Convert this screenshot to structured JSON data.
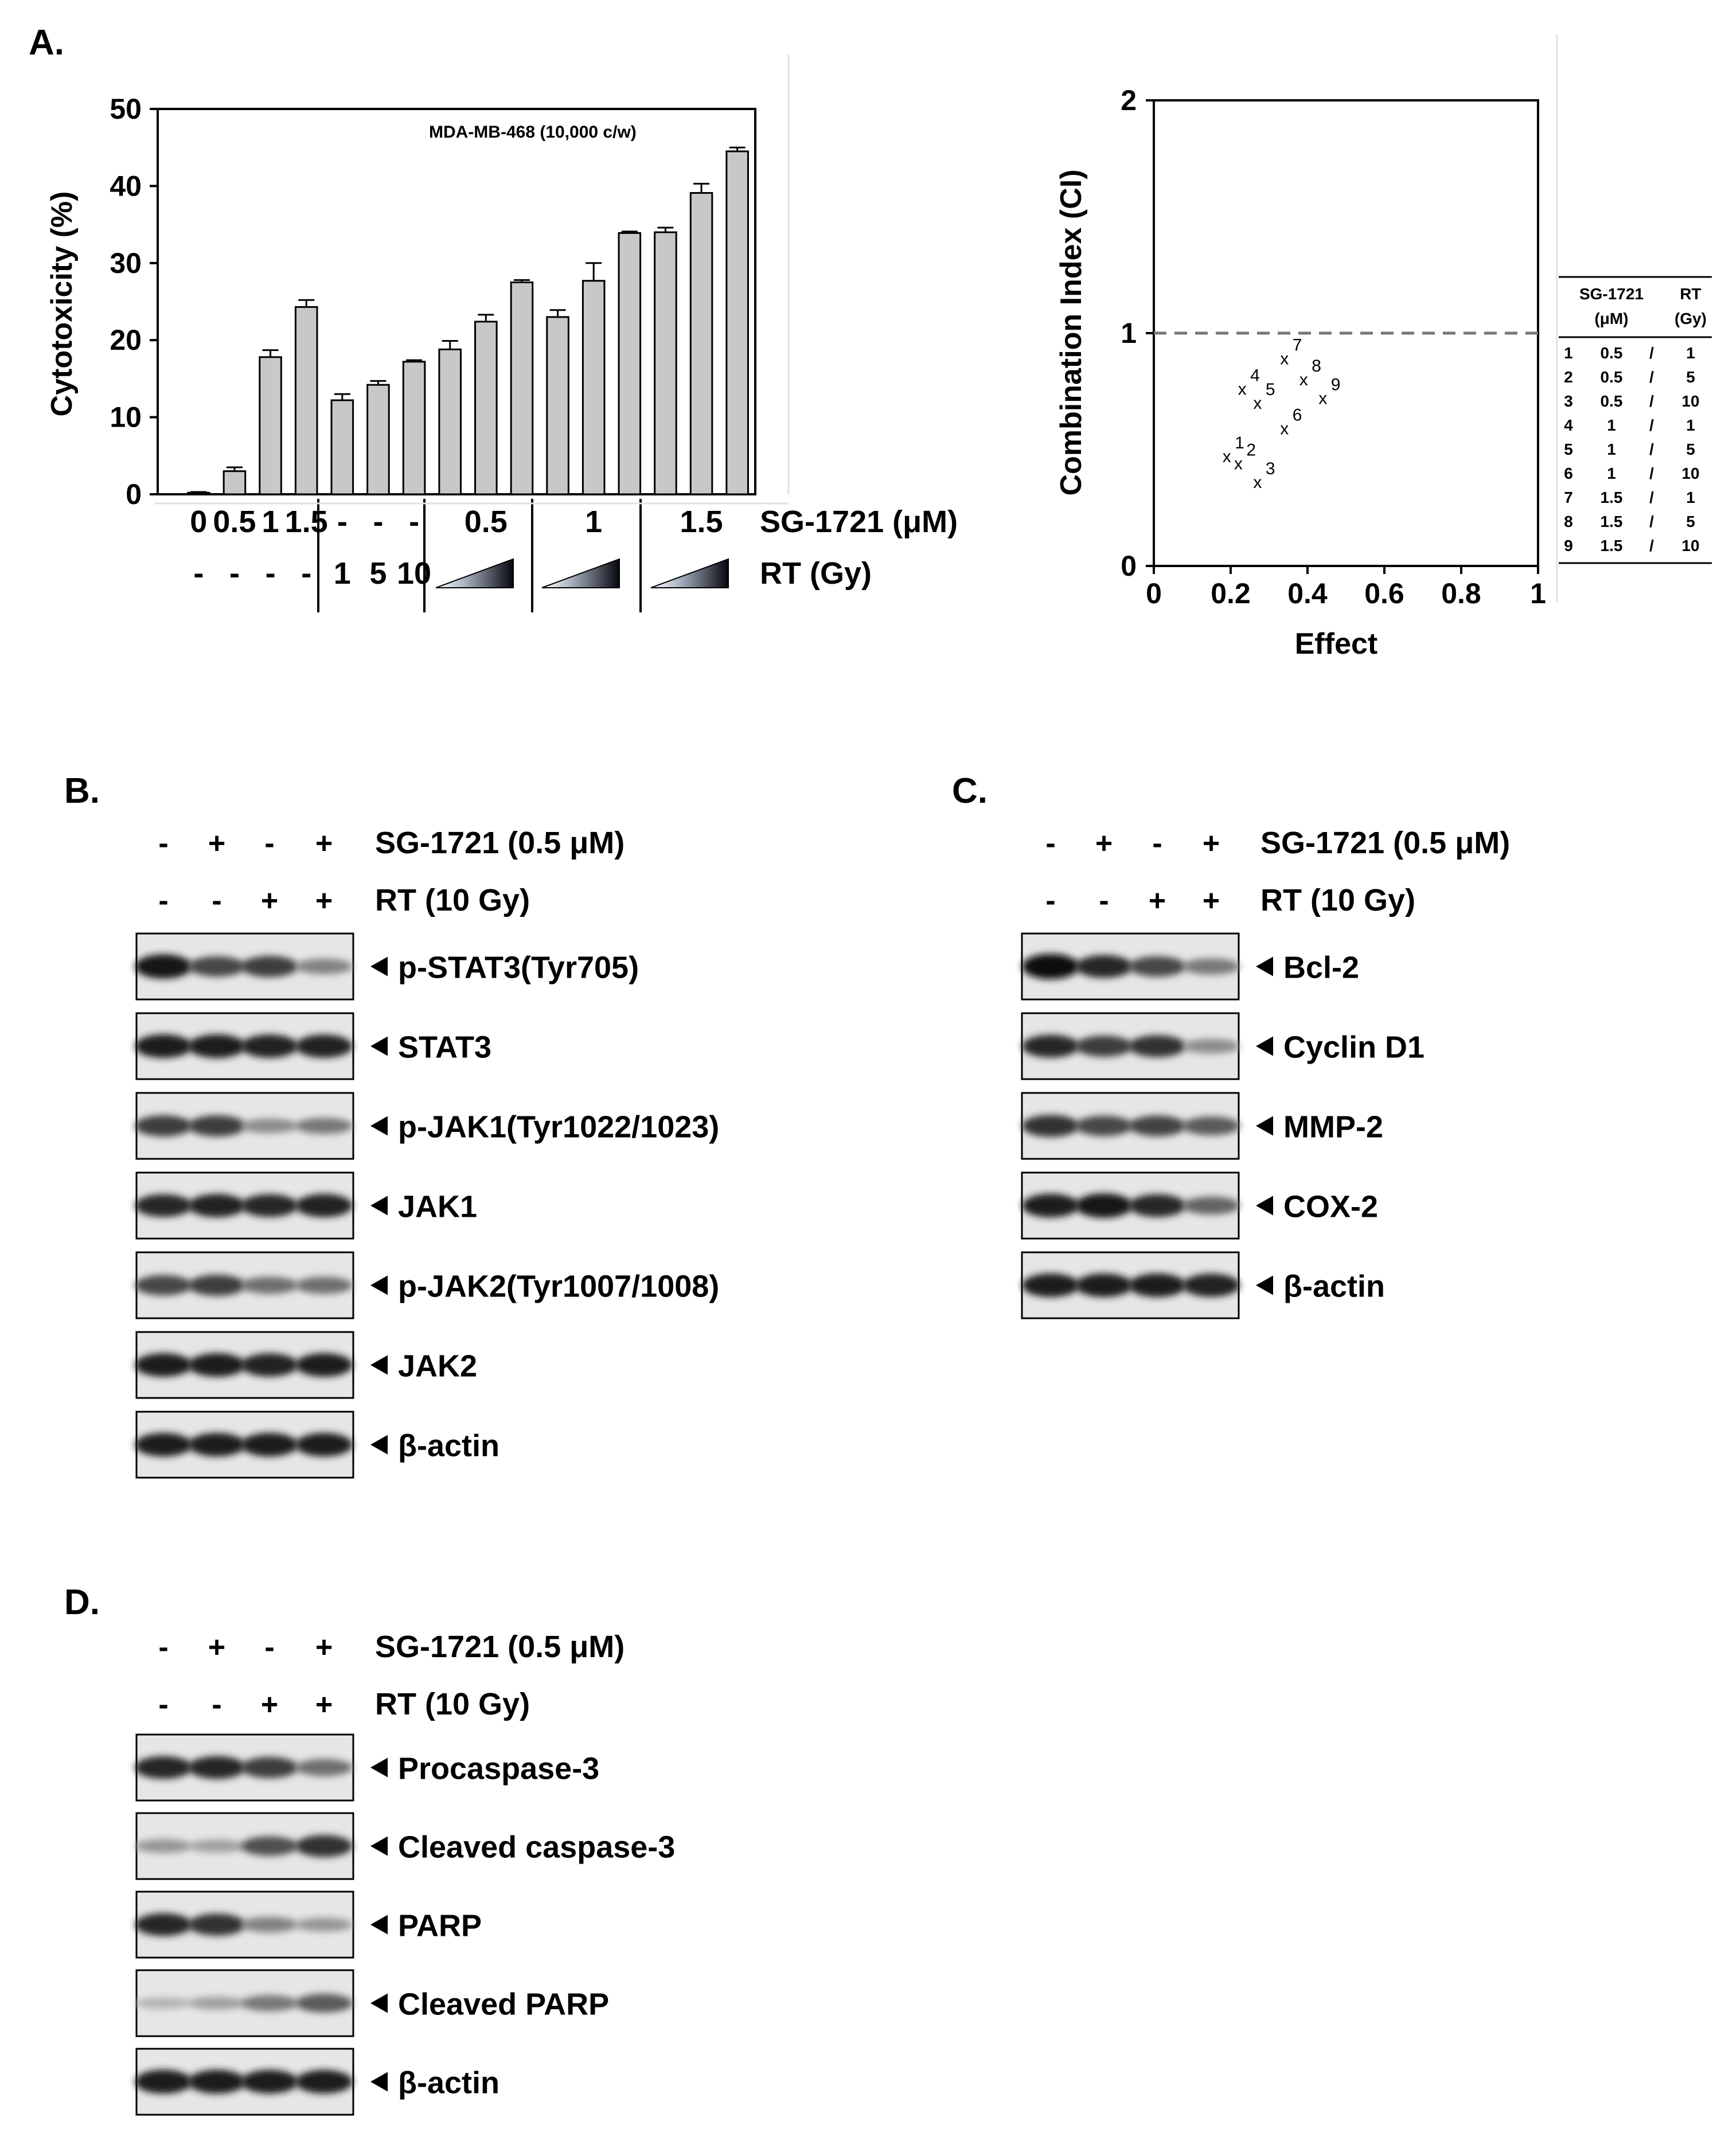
{
  "panels": {
    "a": {
      "letter": "A.",
      "cytotoxicity_chart": {
        "chart_data": {
          "type": "bar",
          "title": "",
          "annotation": "MDA-MB-468  (10,000 c/w)",
          "ylabel": "Cytotoxicity  (%)",
          "ylim": [
            0,
            50
          ],
          "yticks": [
            "0",
            "10",
            "20",
            "30",
            "40",
            "50"
          ],
          "values": [
            0.2,
            3.0,
            17.8,
            24.3,
            12.2,
            14.2,
            17.2,
            18.8,
            22.4,
            27.5,
            23.0,
            27.7,
            33.9,
            34.0,
            39.1,
            44.5
          ],
          "errors": [
            0.1,
            0.5,
            0.9,
            0.9,
            0.8,
            0.5,
            0.2,
            1.1,
            0.9,
            0.3,
            0.9,
            2.3,
            0.2,
            0.6,
            1.2,
            0.5
          ],
          "bar_color": "#c8c8c8"
        },
        "sg_row": {
          "label": "SG-1721  (μM)",
          "values": [
            "0",
            "0.5",
            "1",
            "1.5",
            "-",
            "-",
            "-",
            "0.5",
            "1",
            "1.5"
          ]
        },
        "rt_row": {
          "label": "RT (Gy)",
          "values": [
            "-",
            "-",
            "-",
            "-",
            "1",
            "5",
            "10"
          ]
        }
      },
      "ci_chart": {
        "chart_data": {
          "type": "scatter",
          "xlabel": "Effect",
          "ylabel": "Combination Index (CI)",
          "xlim": [
            0,
            1
          ],
          "ylim": [
            0,
            2
          ],
          "xticks": [
            "0",
            "0.2",
            "0.4",
            "0.6",
            "0.8",
            "1"
          ],
          "yticks": [
            "0",
            "1",
            "2"
          ],
          "reference_line": 1,
          "marker": "x",
          "points": [
            {
              "label": "1",
              "x": 0.19,
              "y": 0.47
            },
            {
              "label": "2",
              "x": 0.22,
              "y": 0.44
            },
            {
              "label": "3",
              "x": 0.27,
              "y": 0.36
            },
            {
              "label": "4",
              "x": 0.23,
              "y": 0.76
            },
            {
              "label": "5",
              "x": 0.27,
              "y": 0.7
            },
            {
              "label": "6",
              "x": 0.34,
              "y": 0.59
            },
            {
              "label": "7",
              "x": 0.34,
              "y": 0.89
            },
            {
              "label": "8",
              "x": 0.39,
              "y": 0.8
            },
            {
              "label": "9",
              "x": 0.44,
              "y": 0.72
            }
          ]
        },
        "legend_table": {
          "header": [
            "SG-1721",
            "RT"
          ],
          "header_units": [
            "(μM)",
            "(Gy)"
          ],
          "rows": [
            [
              "1",
              "0.5",
              "/",
              "1"
            ],
            [
              "2",
              "0.5",
              "/",
              "5"
            ],
            [
              "3",
              "0.5",
              "/",
              "10"
            ],
            [
              "4",
              "1",
              "/",
              "1"
            ],
            [
              "5",
              "1",
              "/",
              "5"
            ],
            [
              "6",
              "1",
              "/",
              "10"
            ],
            [
              "7",
              "1.5",
              "/",
              "1"
            ],
            [
              "8",
              "1.5",
              "/",
              "5"
            ],
            [
              "9",
              "1.5",
              "/",
              "10"
            ]
          ]
        }
      }
    },
    "b": {
      "letter": "B.",
      "treatments": [
        {
          "label": "SG-1721  (0.5 μM)",
          "signs": [
            "-",
            "+",
            "-",
            "+"
          ]
        },
        {
          "label": "RT (10 Gy)",
          "signs": [
            "-",
            "-",
            "+",
            "+"
          ]
        }
      ],
      "blots": [
        {
          "label": "p-STAT3(Tyr705)",
          "intensity": [
            0.95,
            0.7,
            0.75,
            0.4
          ]
        },
        {
          "label": "STAT3",
          "intensity": [
            0.9,
            0.9,
            0.88,
            0.88
          ]
        },
        {
          "label": "p-JAK1(Tyr1022/1023)",
          "intensity": [
            0.75,
            0.75,
            0.35,
            0.45
          ]
        },
        {
          "label": "JAK1",
          "intensity": [
            0.85,
            0.88,
            0.85,
            0.88
          ]
        },
        {
          "label": "p-JAK2(Tyr1007/1008)",
          "intensity": [
            0.7,
            0.75,
            0.5,
            0.5
          ]
        },
        {
          "label": "JAK2",
          "intensity": [
            0.9,
            0.9,
            0.88,
            0.9
          ]
        },
        {
          "label": "β-actin",
          "intensity": [
            0.9,
            0.9,
            0.9,
            0.9
          ]
        }
      ]
    },
    "c": {
      "letter": "C.",
      "treatments": [
        {
          "label": "SG-1721  (0.5 μM)",
          "signs": [
            "-",
            "+",
            "-",
            "+"
          ]
        },
        {
          "label": "RT (10 Gy)",
          "signs": [
            "-",
            "-",
            "+",
            "+"
          ]
        }
      ],
      "blots": [
        {
          "label": "Bcl-2",
          "intensity": [
            1.0,
            0.85,
            0.7,
            0.45
          ]
        },
        {
          "label": "Cyclin D1",
          "intensity": [
            0.85,
            0.75,
            0.8,
            0.35
          ]
        },
        {
          "label": "MMP-2",
          "intensity": [
            0.8,
            0.7,
            0.72,
            0.6
          ]
        },
        {
          "label": "COX-2",
          "intensity": [
            0.9,
            0.95,
            0.85,
            0.55
          ]
        },
        {
          "label": "β-actin",
          "intensity": [
            0.9,
            0.9,
            0.9,
            0.88
          ]
        }
      ]
    },
    "d": {
      "letter": "D.",
      "treatments": [
        {
          "label": "SG-1721  (0.5 μM)",
          "signs": [
            "-",
            "+",
            "-",
            "+"
          ]
        },
        {
          "label": "RT (10 Gy)",
          "signs": [
            "-",
            "-",
            "+",
            "+"
          ]
        }
      ],
      "blots": [
        {
          "label": "Procaspase-3",
          "intensity": [
            0.85,
            0.85,
            0.75,
            0.5
          ]
        },
        {
          "label": "Cleaved caspase-3",
          "intensity": [
            0.3,
            0.25,
            0.65,
            0.8
          ]
        },
        {
          "label": "PARP",
          "intensity": [
            0.85,
            0.8,
            0.4,
            0.3
          ]
        },
        {
          "label": "Cleaved PARP",
          "intensity": [
            0.15,
            0.25,
            0.45,
            0.6
          ]
        },
        {
          "label": "β-actin",
          "intensity": [
            0.92,
            0.92,
            0.9,
            0.9
          ]
        }
      ]
    }
  }
}
